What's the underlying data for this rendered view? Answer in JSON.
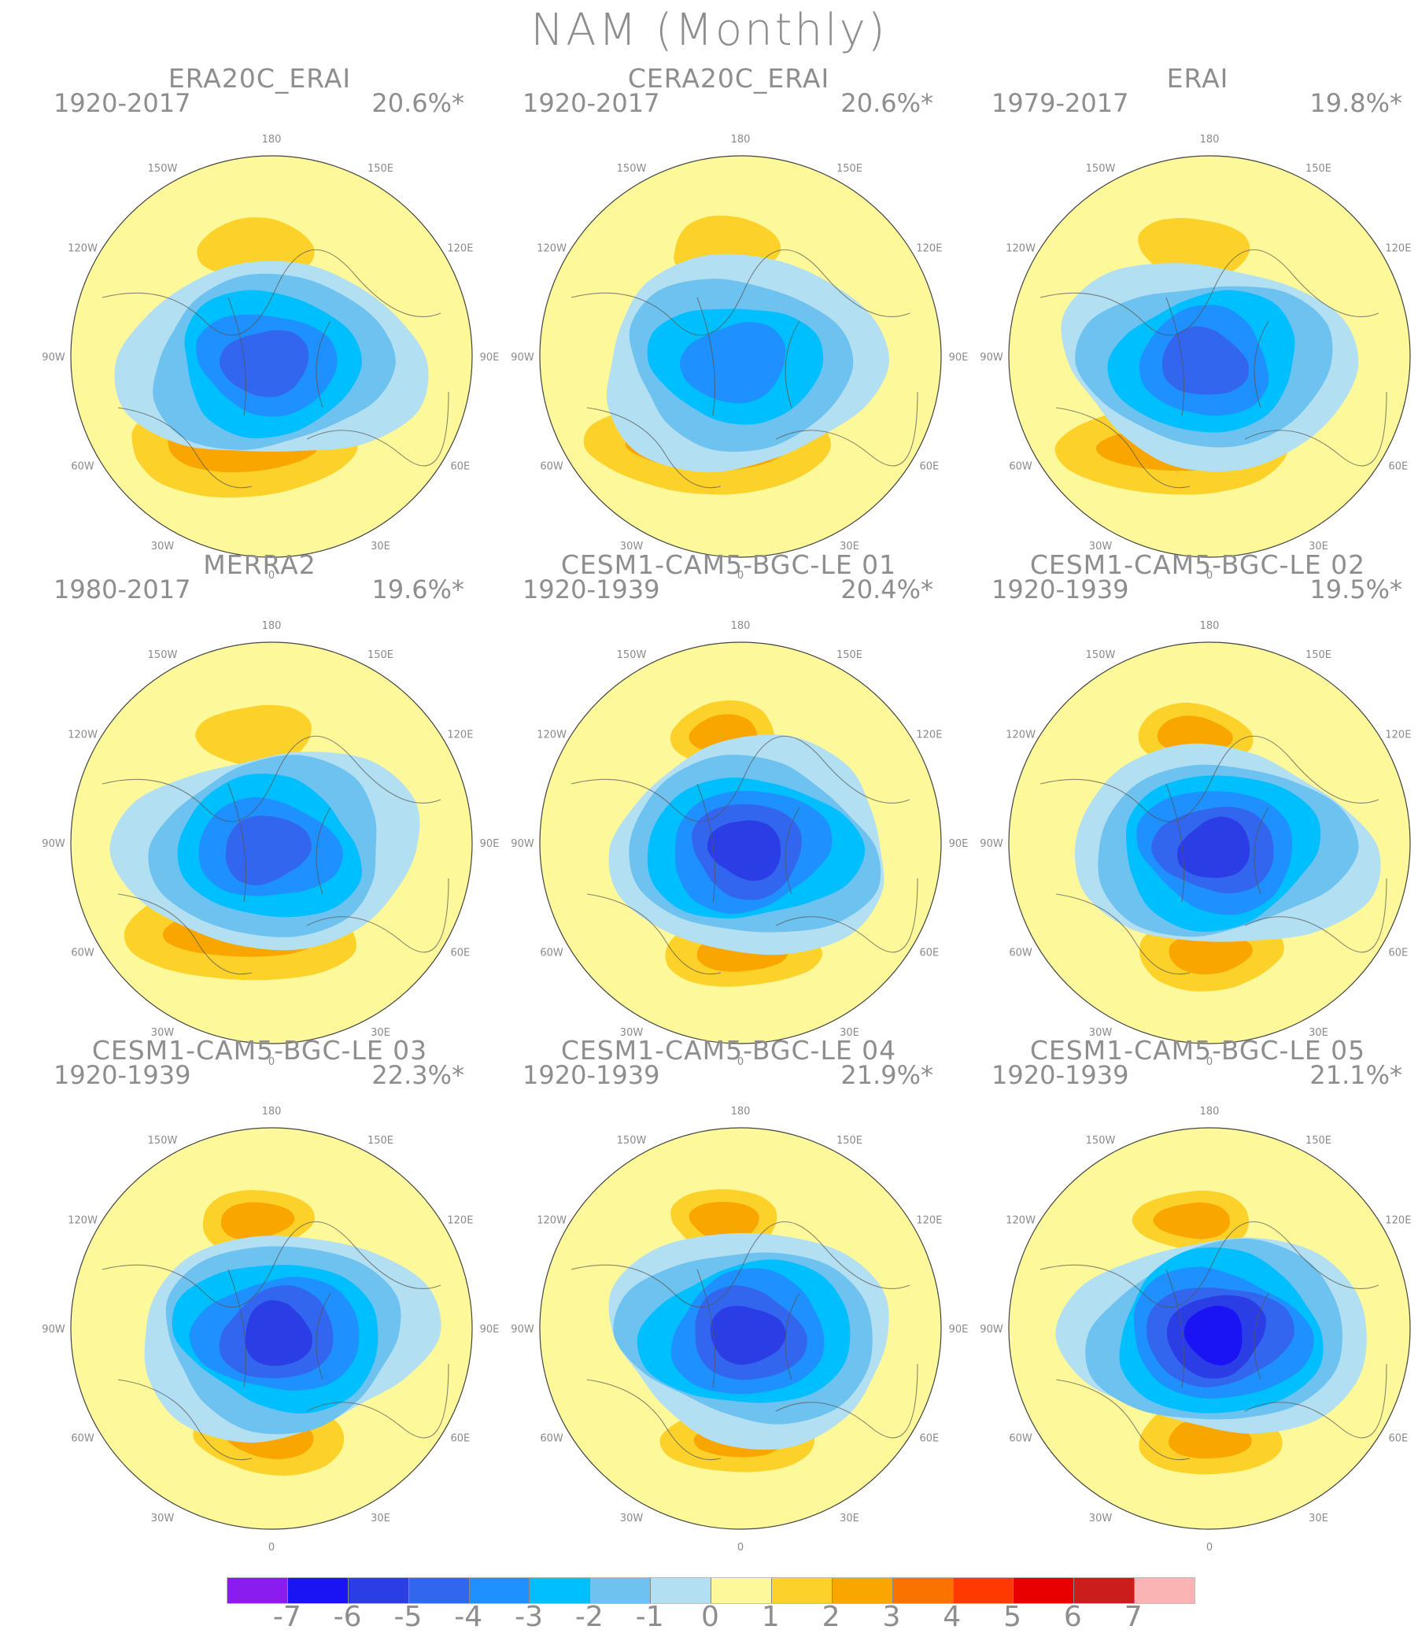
{
  "figure": {
    "title": "NAM (Monthly)"
  },
  "longitude_labels": [
    "180",
    "150E",
    "120E",
    "90E",
    "60E",
    "30E",
    "0",
    "30W",
    "60W",
    "90W",
    "120W",
    "150W"
  ],
  "chart_data": {
    "type": "heatmap",
    "projection": "north-polar-stereographic",
    "panels": [
      {
        "title": "ERA20C_ERAI",
        "period": "1920-2017",
        "variance": "20.6%*",
        "center_min": -5
      },
      {
        "title": "CERA20C_ERAI",
        "period": "1920-2017",
        "variance": "20.6%*",
        "center_min": -4
      },
      {
        "title": "ERAI",
        "period": "1979-2017",
        "variance": "19.8%*",
        "center_min": -5
      },
      {
        "title": "MERRA2",
        "period": "1980-2017",
        "variance": "19.6%*",
        "center_min": -5
      },
      {
        "title": "CESM1-CAM5-BGC-LE 01",
        "period": "1920-1939",
        "variance": "20.4%*",
        "center_min": -6
      },
      {
        "title": "CESM1-CAM5-BGC-LE 02",
        "period": "1920-1939",
        "variance": "19.5%*",
        "center_min": -6
      },
      {
        "title": "CESM1-CAM5-BGC-LE 03",
        "period": "1920-1939",
        "variance": "22.3%*",
        "center_min": -6
      },
      {
        "title": "CESM1-CAM5-BGC-LE 04",
        "period": "1920-1939",
        "variance": "21.9%*",
        "center_min": -6
      },
      {
        "title": "CESM1-CAM5-BGC-LE 05",
        "period": "1920-1939",
        "variance": "21.1%*",
        "center_min": -7
      }
    ],
    "colorbar": {
      "ticks": [
        "-7",
        "-6",
        "-5",
        "-4",
        "-3",
        "-2",
        "-1",
        "0",
        "1",
        "2",
        "3",
        "4",
        "5",
        "6",
        "7"
      ],
      "colors": [
        "#8a1cf0",
        "#1a14f5",
        "#2b3ee6",
        "#3366ee",
        "#1e90ff",
        "#00bfff",
        "#6ec2f0",
        "#b3dff2",
        "#fdf89a",
        "#fcd22a",
        "#f9a600",
        "#fa7300",
        "#ff3a00",
        "#e80000",
        "#cc1d1d",
        "#fbb4b4"
      ]
    }
  }
}
